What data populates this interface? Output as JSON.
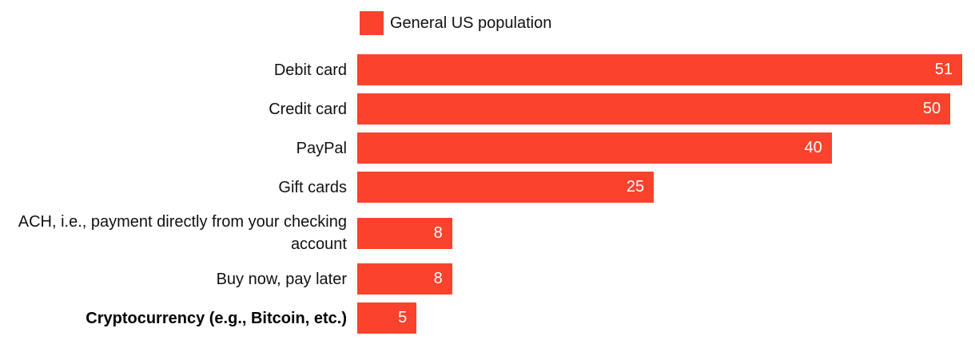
{
  "chart_data": {
    "type": "bar",
    "orientation": "horizontal",
    "title": "",
    "xlabel": "",
    "ylabel": "",
    "xlim": [
      0,
      51
    ],
    "grid": false,
    "legend_position": "top",
    "value_labels": "inside-end",
    "legend": [
      {
        "name": "General US population",
        "color": "#FA422C"
      }
    ],
    "categories": [
      "Debit card",
      "Credit card",
      "PayPal",
      "Gift cards",
      "ACH, i.e., payment directly from your checking account",
      "Buy now, pay later",
      "Cryptocurrency (e.g., Bitcoin, etc.)"
    ],
    "values": [
      51,
      50,
      40,
      25,
      8,
      8,
      5
    ],
    "bold_index": 6
  },
  "colors": {
    "bar": "#FA422C",
    "category_text": "#111111",
    "value_text": "#FFFFFF",
    "background": "#FFFFFF"
  }
}
